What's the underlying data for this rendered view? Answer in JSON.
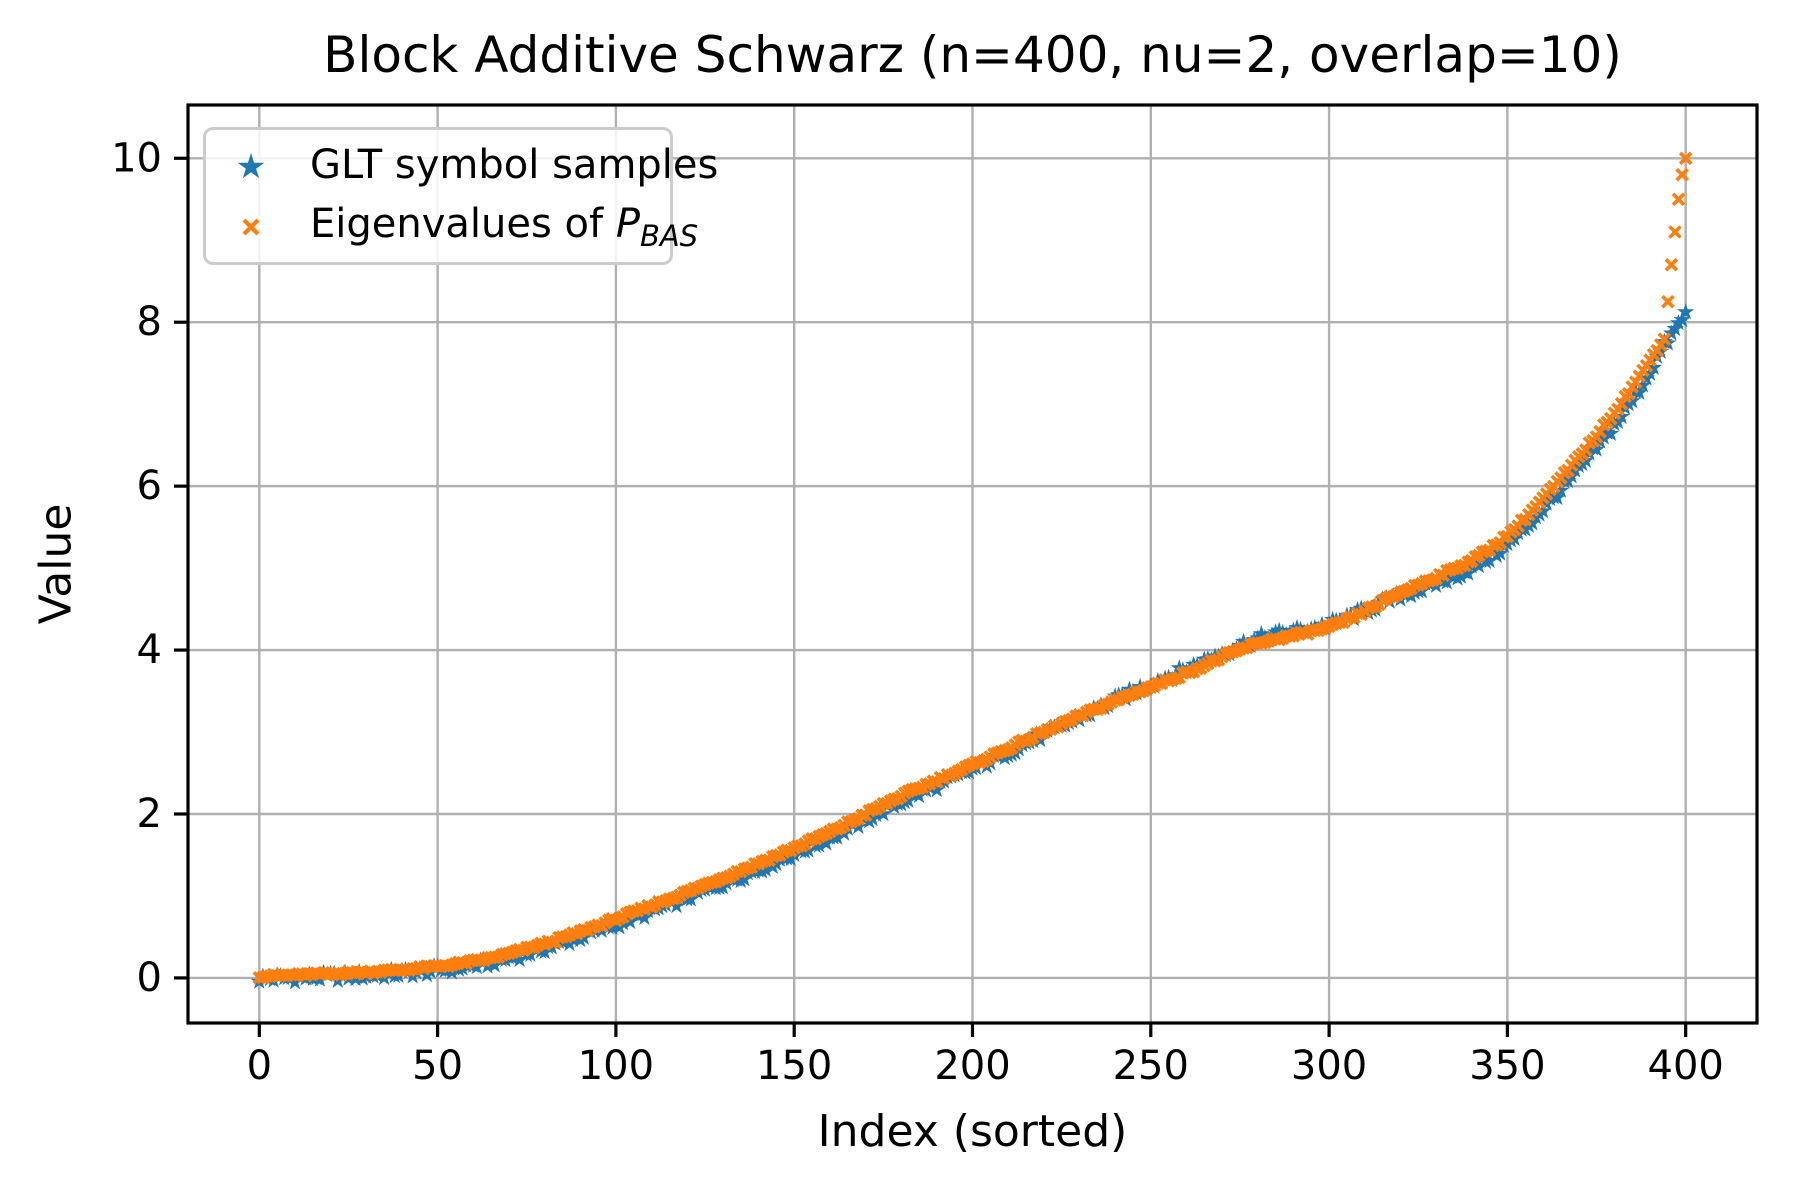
{
  "chart_data": {
    "type": "scatter",
    "title": "Block Additive Schwarz (n=400, nu=2, overlap=10)",
    "xlabel": "Index (sorted)",
    "ylabel": "Value",
    "xlim": [
      -20,
      420
    ],
    "ylim": [
      -0.55,
      10.65
    ],
    "xticks": [
      0,
      50,
      100,
      150,
      200,
      250,
      300,
      350,
      400
    ],
    "yticks": [
      0,
      2,
      4,
      6,
      8,
      10
    ],
    "grid": true,
    "legend_location": "upper left",
    "n_points": 401,
    "base_curve": {
      "x": [
        0,
        20,
        40,
        60,
        80,
        100,
        120,
        140,
        160,
        180,
        200,
        220,
        240,
        260,
        280,
        300,
        320,
        340,
        350,
        360,
        370,
        380,
        388,
        394,
        400
      ],
      "y": [
        0.02,
        0.05,
        0.1,
        0.2,
        0.42,
        0.72,
        1.05,
        1.4,
        1.78,
        2.22,
        2.6,
        3.0,
        3.38,
        3.72,
        4.08,
        4.28,
        4.7,
        5.1,
        5.4,
        5.85,
        6.35,
        6.9,
        7.4,
        7.8,
        8.1
      ]
    },
    "series": [
      {
        "name": "GLT symbol samples",
        "marker": "star",
        "color": "#1f77b4",
        "marker_size": 9,
        "noise_amp": 0.11,
        "offset_curve": {
          "x": [
            0,
            60,
            120,
            180,
            230,
            255,
            280,
            305,
            330,
            360,
            385,
            395,
            400
          ],
          "y": [
            -0.03,
            -0.05,
            -0.07,
            -0.07,
            -0.02,
            0.04,
            0.05,
            0.02,
            -0.08,
            -0.13,
            -0.16,
            -0.08,
            0.0
          ]
        }
      },
      {
        "name": "Eigenvalues of P_BAS",
        "name_parts": {
          "prefix": "Eigenvalues of ",
          "var": "P",
          "sub": "BAS"
        },
        "marker": "x",
        "color": "#ff7f0e",
        "marker_size": 5.5,
        "noise_amp": 0.04,
        "offset_curve": {
          "x": [
            0,
            400
          ],
          "y": [
            0.0,
            0.0
          ]
        },
        "tail_outliers": {
          "x": [
            395,
            396,
            397,
            398,
            399,
            400
          ],
          "y": [
            8.25,
            8.7,
            9.1,
            9.5,
            9.8,
            10.0
          ]
        }
      }
    ],
    "colors": {
      "grid": "#b0b0b0",
      "spine": "#000000",
      "background": "#ffffff"
    }
  }
}
